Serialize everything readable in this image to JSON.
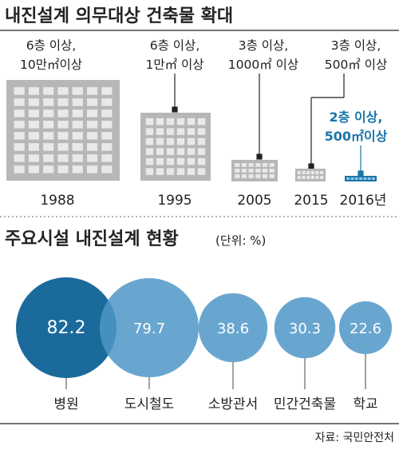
{
  "section1": {
    "title": "내진설계 의무대상 건축물 확대",
    "items": [
      {
        "year": "1988",
        "label_line1": "6층 이상,",
        "label_line2": "10만㎡이상",
        "highlight": false
      },
      {
        "year": "1995",
        "label_line1": "6층 이상,",
        "label_line2": "1만㎡ 이상",
        "highlight": false
      },
      {
        "year": "2005",
        "label_line1": "3층 이상,",
        "label_line2": "1000㎡ 이상",
        "highlight": false
      },
      {
        "year": "2015",
        "label_line1": "3층 이상,",
        "label_line2": "500㎡ 이상",
        "highlight": false
      },
      {
        "year": "2016년",
        "label_line1": "2층 이상,",
        "label_line2": "500㎡이상",
        "highlight": true
      }
    ]
  },
  "section2": {
    "title": "주요시설 내진설계 현황",
    "unit": "(단위: %)"
  },
  "chart_data": {
    "type": "bubble",
    "title": "주요시설 내진설계 현황",
    "unit": "(단위: %)",
    "categories": [
      "병원",
      "도시철도",
      "소방관서",
      "민간건축물",
      "학교"
    ],
    "values": [
      82.2,
      79.7,
      38.6,
      30.3,
      22.6
    ],
    "labels": [
      "82.2",
      "79.7",
      "38.6",
      "30.3",
      "22.6"
    ]
  },
  "source": "자료: 국민안전처",
  "colors": {
    "dark_blue": "#1a6a9c",
    "mid_blue": "#4f97c7",
    "highlight": "#1a76a8",
    "building": "#b7b7b9",
    "window": "#e9e9ea",
    "text": "#222222"
  }
}
